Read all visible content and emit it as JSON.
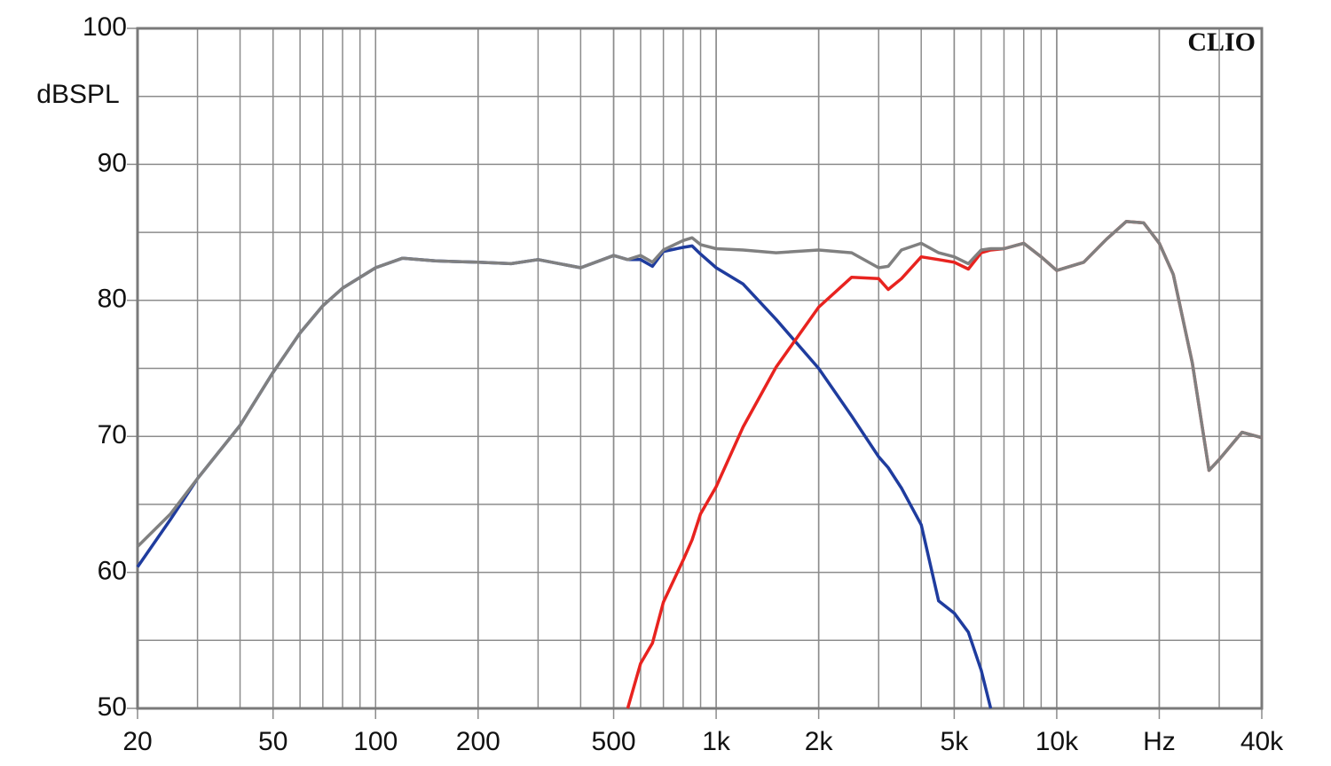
{
  "chart_data": {
    "type": "line",
    "y_label": "dBSPL",
    "annotation": "CLIO",
    "log_x": true,
    "grid": true,
    "xlim": [
      20,
      40000
    ],
    "ylim": [
      50,
      100
    ],
    "xticks": [
      20,
      50,
      100,
      200,
      500,
      {
        "value": 1000,
        "label": "1k"
      },
      {
        "value": 2000,
        "label": "2k"
      },
      {
        "value": 5000,
        "label": "5k"
      },
      {
        "value": 10000,
        "label": "10k"
      },
      {
        "value": 20000,
        "label": "Hz"
      },
      {
        "value": 40000,
        "label": "40k"
      }
    ],
    "yticks": [
      50,
      60,
      70,
      80,
      90,
      100
    ],
    "x": [
      20,
      25,
      30,
      40,
      50,
      60,
      70,
      80,
      100,
      120,
      150,
      200,
      250,
      300,
      400,
      500,
      550,
      600,
      650,
      700,
      800,
      850,
      900,
      1000,
      1200,
      1500,
      2000,
      2500,
      3000,
      3200,
      3500,
      4000,
      4500,
      5000,
      5500,
      6000,
      6400,
      7000,
      8000,
      9000,
      10000,
      12000,
      14000,
      16000,
      18000,
      20000,
      22000,
      25000,
      28000,
      30000,
      35000,
      40000
    ],
    "series": [
      {
        "color": "#1f3c9e",
        "values": [
          60.4,
          63.9,
          66.9,
          70.8,
          74.7,
          77.6,
          79.6,
          80.9,
          82.4,
          83.1,
          82.9,
          82.8,
          82.7,
          83.0,
          82.4,
          83.3,
          83.0,
          83.0,
          82.5,
          83.6,
          83.9,
          84.0,
          83.4,
          82.4,
          81.2,
          78.6,
          75.0,
          71.5,
          68.5,
          67.7,
          66.2,
          63.5,
          57.9,
          57.0,
          55.6,
          52.8,
          50.0,
          null,
          null,
          null,
          null,
          null,
          null,
          null,
          null,
          null,
          null,
          null,
          null,
          null,
          null,
          null
        ]
      },
      {
        "color": "#e8231f",
        "values": [
          null,
          null,
          null,
          null,
          null,
          null,
          null,
          null,
          null,
          null,
          null,
          null,
          null,
          null,
          null,
          null,
          50.0,
          53.3,
          54.8,
          57.8,
          60.9,
          62.4,
          64.3,
          66.3,
          70.7,
          75.1,
          79.5,
          81.7,
          81.6,
          80.8,
          81.6,
          83.2,
          83.0,
          82.8,
          82.3,
          83.5,
          83.7,
          83.8,
          84.2,
          83.2,
          82.2,
          82.8,
          84.5,
          85.8,
          85.7,
          84.2,
          81.9,
          75.4,
          67.5,
          68.3,
          70.3,
          69.9
        ]
      },
      {
        "color": "#808080",
        "values": [
          61.9,
          64.3,
          66.9,
          70.8,
          74.7,
          77.6,
          79.6,
          80.9,
          82.4,
          83.1,
          82.9,
          82.8,
          82.7,
          83.0,
          82.4,
          83.3,
          83.0,
          83.3,
          82.8,
          83.7,
          84.4,
          84.6,
          84.1,
          83.8,
          83.7,
          83.5,
          83.7,
          83.5,
          82.4,
          82.5,
          83.7,
          84.2,
          83.5,
          83.2,
          82.7,
          83.7,
          83.8,
          83.8,
          84.2,
          83.2,
          82.2,
          82.8,
          84.5,
          85.8,
          85.7,
          84.2,
          81.9,
          75.4,
          67.5,
          68.3,
          70.3,
          69.9
        ]
      }
    ]
  }
}
